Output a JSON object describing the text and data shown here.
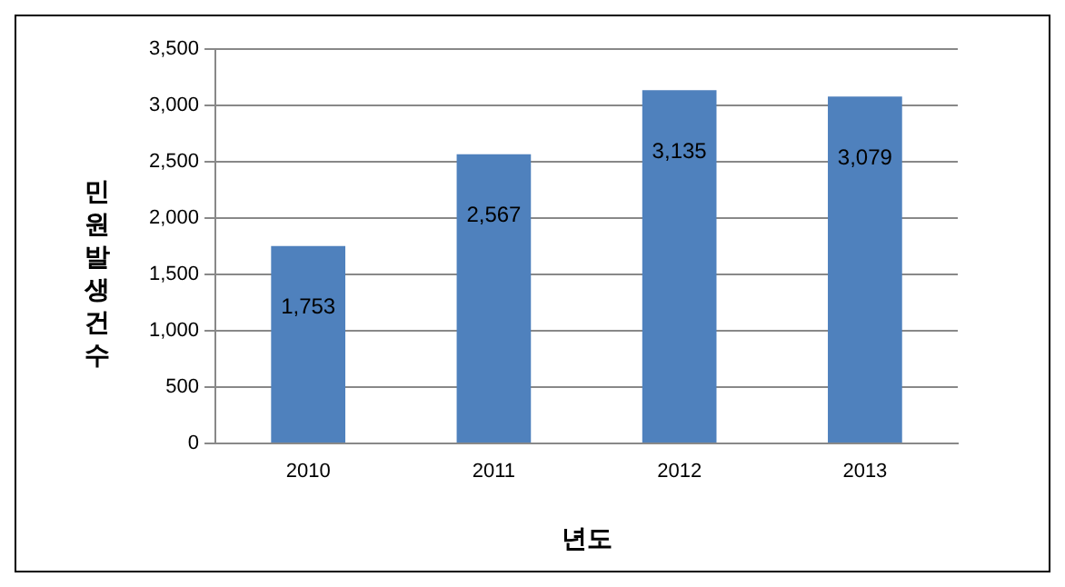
{
  "chart_data": {
    "type": "bar",
    "xlabel": "년도",
    "ylabel": "민원발생건수",
    "categories": [
      "2010",
      "2011",
      "2012",
      "2013"
    ],
    "values": [
      1753,
      2567,
      3135,
      3079
    ],
    "color": "#4f81bd",
    "ylim": [
      0,
      3500
    ],
    "yticks": [
      {
        "value": 0,
        "label": "0"
      },
      {
        "value": 500,
        "label": "500"
      },
      {
        "value": 1000,
        "label": "1,000"
      },
      {
        "value": 1500,
        "label": "1,500"
      },
      {
        "value": 2000,
        "label": "2,000"
      },
      {
        "value": 2500,
        "label": "2,500"
      },
      {
        "value": 3000,
        "label": "3,000"
      },
      {
        "value": 3500,
        "label": "3,500"
      }
    ],
    "value_labels": [
      "1,753",
      "2,567",
      "3,135",
      "3,079"
    ],
    "grid": "y",
    "legend": false
  }
}
